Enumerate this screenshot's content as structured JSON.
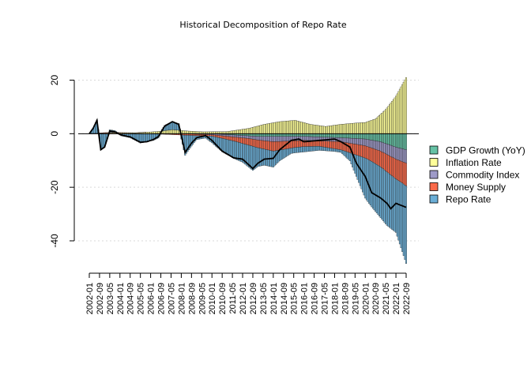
{
  "chart_data": {
    "type": "stacked-bar",
    "title": "Historical Decomposition of Repo Rate",
    "xlabel": "",
    "ylabel": "",
    "ylim": [
      -49,
      21
    ],
    "yticks": [
      20,
      0,
      -20,
      -40
    ],
    "ytick_labels": [
      "20",
      "0",
      "-20",
      "-40"
    ],
    "grid": true,
    "zero_line": true,
    "legend_position": "right",
    "x_tick_labels": [
      "2002-01",
      "2002-09",
      "2003-05",
      "2004-01",
      "2004-09",
      "2005-05",
      "2006-01",
      "2006-09",
      "2007-05",
      "2008-01",
      "2008-09",
      "2009-05",
      "2010-01",
      "2010-09",
      "2011-05",
      "2012-01",
      "2012-09",
      "2013-05",
      "2014-01",
      "2014-09",
      "2015-05",
      "2016-01",
      "2016-09",
      "2017-05",
      "2018-01",
      "2018-09",
      "2019-05",
      "2020-01",
      "2020-09",
      "2021-05",
      "2022-01",
      "2022-09"
    ],
    "period_start": "2002-01",
    "period_months_between_ticks": 8,
    "series": [
      {
        "name": "GDP Growth (YoY)",
        "color": "#66c2a5",
        "anchors": [
          [
            "2002-01",
            0
          ],
          [
            "2004-01",
            0
          ],
          [
            "2006-01",
            0
          ],
          [
            "2008-01",
            0
          ],
          [
            "2010-01",
            0
          ],
          [
            "2013-01",
            -1
          ],
          [
            "2016-01",
            -1
          ],
          [
            "2018-06",
            -1.5
          ],
          [
            "2020-01",
            -2
          ],
          [
            "2021-01",
            -3
          ],
          [
            "2022-01",
            -5
          ],
          [
            "2022-09",
            -6
          ]
        ]
      },
      {
        "name": "Inflation Rate",
        "color": "#ffff99",
        "anchors": [
          [
            "2002-01",
            0
          ],
          [
            "2003-06",
            0.3
          ],
          [
            "2005-01",
            0.3
          ],
          [
            "2006-06",
            0.8
          ],
          [
            "2007-06",
            1.5
          ],
          [
            "2008-06",
            1
          ],
          [
            "2009-06",
            0.7
          ],
          [
            "2011-01",
            0.8
          ],
          [
            "2012-06",
            2
          ],
          [
            "2013-06",
            3.5
          ],
          [
            "2014-06",
            4.5
          ],
          [
            "2015-06",
            5
          ],
          [
            "2016-06",
            3.5
          ],
          [
            "2017-06",
            2.7
          ],
          [
            "2018-06",
            3.5
          ],
          [
            "2019-06",
            4
          ],
          [
            "2020-01",
            4.2
          ],
          [
            "2020-09",
            5.5
          ],
          [
            "2021-05",
            9
          ],
          [
            "2022-01",
            14
          ],
          [
            "2022-09",
            21
          ]
        ]
      },
      {
        "name": "Commodity Index",
        "color": "#9e9ac8",
        "anchors": [
          [
            "2002-01",
            0
          ],
          [
            "2008-01",
            0
          ],
          [
            "2010-06",
            -0.5
          ],
          [
            "2012-06",
            -1
          ],
          [
            "2014-01",
            -2
          ],
          [
            "2016-01",
            -1.5
          ],
          [
            "2018-06",
            -1.5
          ],
          [
            "2020-01",
            -2.5
          ],
          [
            "2021-01",
            -3.5
          ],
          [
            "2022-01",
            -4.5
          ],
          [
            "2022-09",
            -5
          ]
        ]
      },
      {
        "name": "Money Supply",
        "color": "#fb6a4a",
        "anchors": [
          [
            "2002-01",
            0
          ],
          [
            "2003-01",
            0.2
          ],
          [
            "2006-01",
            0
          ],
          [
            "2008-01",
            -0.5
          ],
          [
            "2010-01",
            -0.5
          ],
          [
            "2011-06",
            -1.5
          ],
          [
            "2012-06",
            -2.5
          ],
          [
            "2014-01",
            -3.5
          ],
          [
            "2015-06",
            -2.5
          ],
          [
            "2017-01",
            -2
          ],
          [
            "2018-06",
            -3
          ],
          [
            "2019-06",
            -4
          ],
          [
            "2020-06",
            -5
          ],
          [
            "2021-06",
            -6.5
          ],
          [
            "2022-06",
            -8
          ],
          [
            "2022-09",
            -8.5
          ]
        ]
      },
      {
        "name": "Repo Rate",
        "color": "#6baed6",
        "anchors": [
          [
            "2002-01",
            0
          ],
          [
            "2002-04",
            2
          ],
          [
            "2002-07",
            5
          ],
          [
            "2002-10",
            -6
          ],
          [
            "2003-01",
            -5
          ],
          [
            "2003-05",
            1
          ],
          [
            "2003-09",
            0.7
          ],
          [
            "2004-02",
            -0.8
          ],
          [
            "2004-09",
            -1.5
          ],
          [
            "2005-05",
            -3.5
          ],
          [
            "2005-10",
            -3
          ],
          [
            "2006-03",
            -2.5
          ],
          [
            "2006-07",
            -1.5
          ],
          [
            "2006-12",
            2
          ],
          [
            "2007-06",
            3
          ],
          [
            "2007-11",
            2.5
          ],
          [
            "2008-04",
            -7.5
          ],
          [
            "2008-09",
            -4
          ],
          [
            "2009-01",
            -1.5
          ],
          [
            "2009-08",
            -0.8
          ],
          [
            "2010-01",
            -2.5
          ],
          [
            "2010-09",
            -5
          ],
          [
            "2011-06",
            -6.5
          ],
          [
            "2012-01",
            -7
          ],
          [
            "2012-09",
            -9
          ],
          [
            "2013-01",
            -7
          ],
          [
            "2013-06",
            -6
          ],
          [
            "2014-01",
            -6
          ],
          [
            "2014-06",
            -4
          ],
          [
            "2015-03",
            -2
          ],
          [
            "2016-01",
            -2
          ],
          [
            "2017-01",
            -1.5
          ],
          [
            "2018-01",
            -1
          ],
          [
            "2018-06",
            -1
          ],
          [
            "2019-01",
            -3
          ],
          [
            "2019-06",
            -8
          ],
          [
            "2020-01",
            -15
          ],
          [
            "2020-06",
            -17
          ],
          [
            "2021-01",
            -19
          ],
          [
            "2021-06",
            -20
          ],
          [
            "2022-01",
            -20
          ],
          [
            "2022-09",
            -29
          ]
        ]
      }
    ],
    "total_line": {
      "name": "Repo Rate",
      "color": "#000000",
      "anchors": [
        [
          "2002-01",
          0
        ],
        [
          "2002-04",
          2
        ],
        [
          "2002-07",
          5
        ],
        [
          "2002-10",
          -6
        ],
        [
          "2003-01",
          -5
        ],
        [
          "2003-05",
          1
        ],
        [
          "2003-09",
          0.7
        ],
        [
          "2004-02",
          -0.5
        ],
        [
          "2004-09",
          -1.2
        ],
        [
          "2005-05",
          -3.2
        ],
        [
          "2005-10",
          -3
        ],
        [
          "2006-03",
          -2.2
        ],
        [
          "2006-07",
          -1.1
        ],
        [
          "2006-12",
          2.8
        ],
        [
          "2007-06",
          4.5
        ],
        [
          "2007-11",
          3.5
        ],
        [
          "2008-04",
          -7
        ],
        [
          "2008-09",
          -3.5
        ],
        [
          "2009-01",
          -1.5
        ],
        [
          "2009-08",
          -0.7
        ],
        [
          "2010-01",
          -2.5
        ],
        [
          "2010-09",
          -6.5
        ],
        [
          "2011-06",
          -9
        ],
        [
          "2012-01",
          -9.5
        ],
        [
          "2012-09",
          -13
        ],
        [
          "2013-01",
          -11
        ],
        [
          "2013-06",
          -9.5
        ],
        [
          "2014-01",
          -9.2
        ],
        [
          "2014-06",
          -6
        ],
        [
          "2015-03",
          -2.5
        ],
        [
          "2015-09",
          -2
        ],
        [
          "2016-01",
          -3
        ],
        [
          "2017-01",
          -2.5
        ],
        [
          "2018-01",
          -2
        ],
        [
          "2018-06",
          -3
        ],
        [
          "2019-01",
          -5
        ],
        [
          "2019-06",
          -11
        ],
        [
          "2020-01",
          -16
        ],
        [
          "2020-06",
          -22
        ],
        [
          "2021-01",
          -24
        ],
        [
          "2021-06",
          -26
        ],
        [
          "2021-09",
          -28
        ],
        [
          "2022-01",
          -26
        ],
        [
          "2022-09",
          -27.5
        ]
      ]
    }
  }
}
